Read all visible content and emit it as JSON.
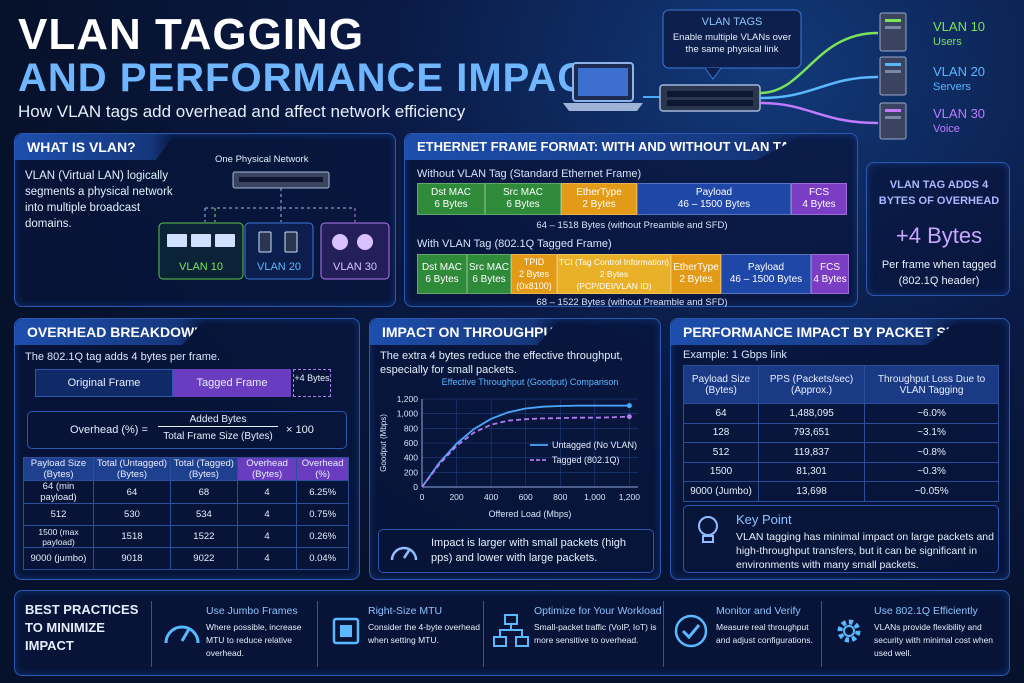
{
  "header": {
    "title_line1": "VLAN TAGGING",
    "title_line2": "AND PERFORMANCE IMPACT",
    "subtitle": "How VLAN tags add overhead and affect network efficiency"
  },
  "hero": {
    "callout_title": "VLAN TAGS",
    "callout_text": "Enable multiple VLANs over the same physical link",
    "vlans": [
      {
        "name": "VLAN 10",
        "role": "Users",
        "color": "#7be35a"
      },
      {
        "name": "VLAN 20",
        "role": "Servers",
        "color": "#5ab8ff"
      },
      {
        "name": "VLAN 30",
        "role": "Voice",
        "color": "#c07bff"
      }
    ]
  },
  "what_is": {
    "title": "WHAT IS VLAN?",
    "text": "VLAN (Virtual LAN) logically segments a physical network into multiple broadcast domains.",
    "network_label": "One Physical Network",
    "groups": [
      "VLAN 10",
      "VLAN 20",
      "VLAN 30"
    ]
  },
  "frame_format": {
    "title": "ETHERNET FRAME FORMAT: WITH AND WITHOUT VLAN TAG",
    "untagged_label": "Without VLAN Tag (Standard Ethernet Frame)",
    "untagged_fields": [
      {
        "name": "Dst MAC",
        "size": "6 Bytes"
      },
      {
        "name": "Src MAC",
        "size": "6 Bytes"
      },
      {
        "name": "EtherType",
        "size": "2 Bytes"
      },
      {
        "name": "Payload",
        "size": "46 – 1500 Bytes"
      },
      {
        "name": "FCS",
        "size": "4 Bytes"
      }
    ],
    "untagged_range": "64 – 1518 Bytes (without Preamble and SFD)",
    "tagged_label": "With VLAN Tag (802.1Q Tagged Frame)",
    "tagged_fields": [
      {
        "name": "Dst MAC",
        "size": "6 Bytes"
      },
      {
        "name": "Src MAC",
        "size": "6 Bytes"
      },
      {
        "name": "TPID",
        "size": "2 Bytes",
        "extra": "(0x8100)"
      },
      {
        "name": "TCI (Tag Control Information)",
        "size": "2 Bytes",
        "extra": "(PCP/DEI/VLAN ID)"
      },
      {
        "name": "EtherType",
        "size": "2 Bytes"
      },
      {
        "name": "Payload",
        "size": "46 – 1500 Bytes"
      },
      {
        "name": "FCS",
        "size": "4 Bytes"
      }
    ],
    "tagged_range": "68 – 1522 Bytes (without Preamble and SFD)"
  },
  "tag_overhead": {
    "title": "VLAN TAG ADDS 4 BYTES OF OVERHEAD",
    "value": "+4 Bytes",
    "caption": "Per frame when tagged (802.1Q header)"
  },
  "overhead": {
    "title": "OVERHEAD BREAKDOWN",
    "intro": "The 802.1Q tag adds 4 bytes per frame.",
    "original_label": "Original Frame",
    "tagged_label": "Tagged Frame",
    "plus_label": "+4 Bytes",
    "formula_lhs": "Overhead (%)  =",
    "formula_num": "Added Bytes",
    "formula_den": "Total Frame Size (Bytes)",
    "formula_mult": "× 100",
    "headers": [
      "Payload Size (Bytes)",
      "Total (Untagged) (Bytes)",
      "Total (Tagged) (Bytes)",
      "Overhead (Bytes)",
      "Overhead (%)"
    ],
    "rows": [
      [
        "64 (min payload)",
        "64",
        "68",
        "4",
        "6.25%"
      ],
      [
        "512",
        "530",
        "534",
        "4",
        "0.75%"
      ],
      [
        "1500 (max payload)",
        "1518",
        "1522",
        "4",
        "0.26%"
      ],
      [
        "9000 (jumbo)",
        "9018",
        "9022",
        "4",
        "0.04%"
      ]
    ]
  },
  "throughput": {
    "title": "IMPACT ON THROUGHPUT",
    "intro": "The extra 4 bytes reduce the effective throughput, especially for small packets.",
    "note": "Impact is larger with small packets (high pps) and lower with large packets."
  },
  "chart_data": {
    "type": "line",
    "title": "Effective Throughput (Goodput) Comparison",
    "xlabel": "Offered Load (Mbps)",
    "ylabel": "Goodput (Mbps)",
    "xlim": [
      0,
      1250
    ],
    "ylim": [
      0,
      1200
    ],
    "xticks": [
      "0",
      "200",
      "400",
      "600",
      "800",
      "1,000",
      "1,200"
    ],
    "yticks": [
      "0",
      "200",
      "400",
      "600",
      "800",
      "1,000",
      "1,200"
    ],
    "x": [
      0,
      100,
      200,
      300,
      400,
      500,
      600,
      700,
      800,
      900,
      1000,
      1100,
      1200
    ],
    "series": [
      {
        "name": "Untagged (No VLAN)",
        "color": "#4aa8ff",
        "dash": false,
        "values": [
          0,
          330,
          590,
          790,
          930,
          1020,
          1070,
          1095,
          1105,
          1110,
          1110,
          1110,
          1110
        ]
      },
      {
        "name": "Tagged (802.1Q)",
        "color": "#b07af0",
        "dash": true,
        "values": [
          0,
          310,
          560,
          740,
          850,
          905,
          925,
          935,
          940,
          945,
          945,
          950,
          960
        ]
      }
    ],
    "legend": "right",
    "grid": true
  },
  "packet_size": {
    "title": "PERFORMANCE IMPACT BY PACKET SIZE",
    "example": "Example: 1 Gbps link",
    "headers": [
      "Payload Size (Bytes)",
      "PPS (Packets/sec) (Approx.)",
      "Throughput Loss Due to VLAN Tagging"
    ],
    "rows": [
      [
        "64",
        "1,488,095",
        "~6.0%"
      ],
      [
        "128",
        "793,651",
        "~3.1%"
      ],
      [
        "512",
        "119,837",
        "~0.8%"
      ],
      [
        "1500",
        "81,301",
        "~0.3%"
      ],
      [
        "9000 (Jumbo)",
        "13,698",
        "~0.05%"
      ]
    ],
    "key_title": "Key Point",
    "key_text": "VLAN tagging has minimal impact on large packets and high-throughput transfers, but it can be significant in environments with many small packets."
  },
  "best_practices": {
    "title": "BEST PRACTICES TO MINIMIZE IMPACT",
    "items": [
      {
        "title": "Use Jumbo Frames",
        "text": "Where possible, increase MTU to reduce relative overhead.",
        "icon": "gauge-icon"
      },
      {
        "title": "Right-Size MTU",
        "text": "Consider the 4-byte overhead when setting MTU.",
        "icon": "chip-icon"
      },
      {
        "title": "Optimize for Your Workload",
        "text": "Small-packet traffic (VoIP, IoT) is more sensitive to overhead.",
        "icon": "hierarchy-icon"
      },
      {
        "title": "Monitor and Verify",
        "text": "Measure real throughput and adjust configurations.",
        "icon": "check-icon"
      },
      {
        "title": "Use 802.1Q Efficiently",
        "text": "VLANs provide flexibility and security with minimal cost when used well.",
        "icon": "gear-icon"
      }
    ]
  }
}
